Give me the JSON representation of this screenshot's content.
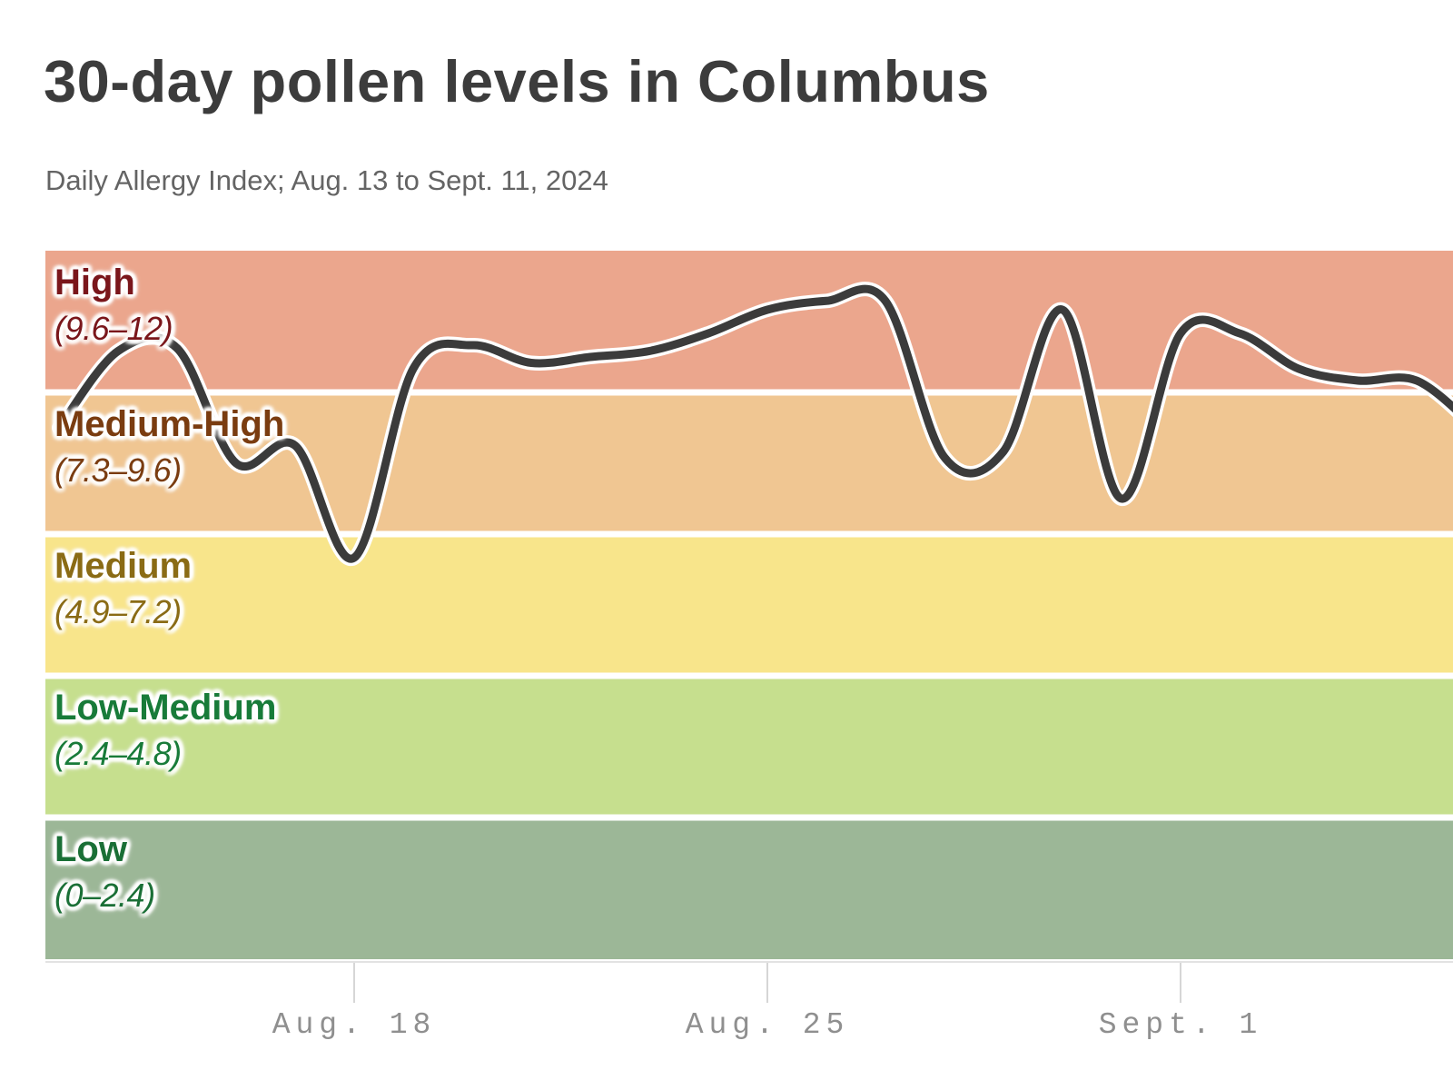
{
  "header": {
    "title": "30-day pollen levels in Columbus",
    "subtitle": "Daily Allergy Index; Aug. 13 to Sept. 11, 2024"
  },
  "chart_data": {
    "type": "line",
    "title": "30-day pollen levels in Columbus",
    "subtitle": "Daily Allergy Index; Aug. 13 to Sept. 11, 2024",
    "ylabel": "Daily Allergy Index",
    "ylim": [
      0,
      12
    ],
    "grid": false,
    "legend": "none",
    "x_start_date": "Aug. 13",
    "x_ticks": [
      {
        "label": "Aug. 18",
        "day_index": 5
      },
      {
        "label": "Aug. 25",
        "day_index": 12
      },
      {
        "label": "Sept. 1",
        "day_index": 19
      }
    ],
    "bands": [
      {
        "name": "High",
        "range_label": "(9.6–12)",
        "min": 9.6,
        "max": 12,
        "fill": "#eba68d",
        "text_color": "#7a161b"
      },
      {
        "name": "Medium-High",
        "range_label": "(7.3–9.6)",
        "min": 7.3,
        "max": 9.6,
        "fill": "#f0c692",
        "text_color": "#7a3c10"
      },
      {
        "name": "Medium",
        "range_label": "(4.9–7.2)",
        "min": 4.9,
        "max": 7.2,
        "fill": "#f8e58b",
        "text_color": "#8a6b15"
      },
      {
        "name": "Low-Medium",
        "range_label": "(2.4–4.8)",
        "min": 2.4,
        "max": 4.8,
        "fill": "#c6df8e",
        "text_color": "#187b39"
      },
      {
        "name": "Low",
        "range_label": "(0–2.4)",
        "min": 0,
        "max": 2.4,
        "fill": "#9cb797",
        "text_color": "#1a6f36"
      }
    ],
    "series": [
      {
        "name": "Daily Allergy Index",
        "day_index_from_aug13": [
          0,
          1,
          2,
          3,
          4,
          5,
          6,
          7,
          8,
          9,
          10,
          11,
          12,
          13,
          14,
          15,
          16,
          17,
          18,
          19,
          20,
          21,
          22,
          23,
          24
        ],
        "values": [
          9.0,
          10.3,
          10.35,
          8.4,
          8.7,
          6.8,
          10.0,
          10.4,
          10.1,
          10.2,
          10.3,
          10.6,
          11.0,
          11.15,
          11.15,
          8.5,
          8.6,
          11.0,
          7.8,
          10.6,
          10.6,
          10.0,
          9.8,
          9.8,
          9.0
        ]
      }
    ],
    "line_color": "#3b3b3b",
    "line_casing_color": "#ffffff",
    "axis_color": "#e2e2e2",
    "tick_color": "#d6d6d6",
    "tick_label_color": "#8f8f8f"
  }
}
